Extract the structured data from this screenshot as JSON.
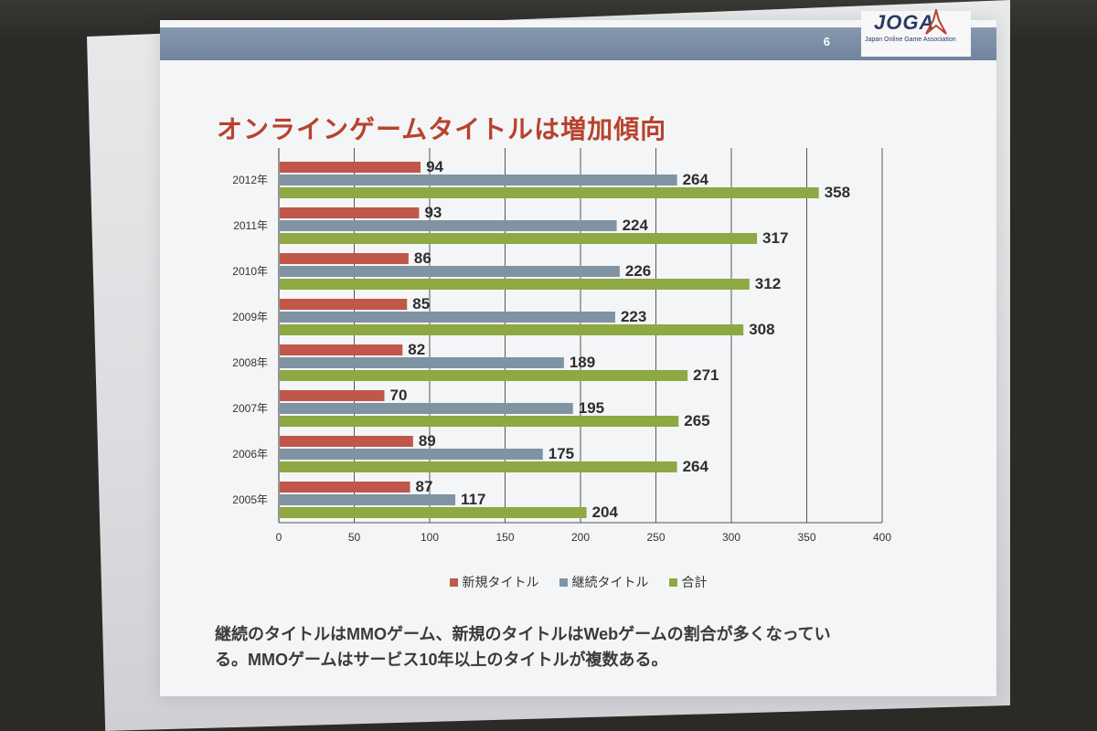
{
  "slide": {
    "page_number": "6",
    "logo": {
      "main": "JOGA",
      "sub": "Japan Online Game Association"
    },
    "title": "オンラインゲームタイトルは増加傾向",
    "note_line1": "継続のタイトルはMMOゲーム、新規のタイトルはWebゲームの割合が多くなってい",
    "note_line2": "る。MMOゲームはサービス10年以上のタイトルが複数ある。",
    "colors": {
      "title": "#b7432d",
      "topbar": "#7b8da6"
    }
  },
  "chart_data": {
    "type": "bar",
    "orientation": "horizontal",
    "categories": [
      "2005年",
      "2006年",
      "2007年",
      "2008年",
      "2009年",
      "2010年",
      "2011年",
      "2012年"
    ],
    "series": [
      {
        "name": "新規タイトル",
        "color": "#c0574a",
        "values": [
          87,
          89,
          70,
          82,
          85,
          86,
          93,
          94
        ]
      },
      {
        "name": "継続タイトル",
        "color": "#7f93a3",
        "values": [
          117,
          175,
          195,
          189,
          223,
          226,
          224,
          264
        ]
      },
      {
        "name": "合計",
        "color": "#8ea843",
        "values": [
          204,
          264,
          265,
          271,
          308,
          312,
          317,
          358
        ]
      }
    ],
    "xlim": [
      0,
      400
    ],
    "xticks": [
      "0",
      "50",
      "100",
      "150",
      "200",
      "250",
      "300",
      "350",
      "400"
    ],
    "grid": "vertical",
    "legend_position": "bottom"
  }
}
